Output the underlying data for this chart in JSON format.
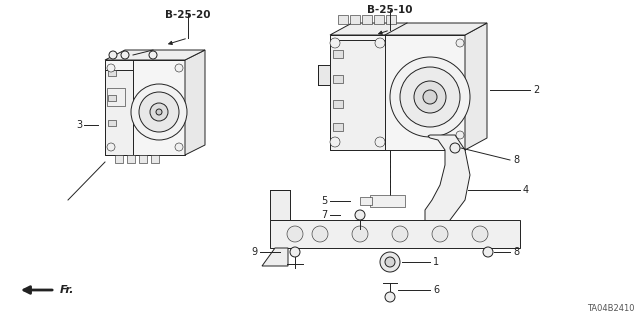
{
  "bg_color": "#ffffff",
  "fig_width": 6.4,
  "fig_height": 3.19,
  "dpi": 100,
  "ref_code": "TA04B2410",
  "fr_label": "Fr.",
  "label_b2520": "B-25-20",
  "label_b2510": "B-25-10",
  "lc": "#222222",
  "lw_main": 0.7,
  "lw_thin": 0.4
}
